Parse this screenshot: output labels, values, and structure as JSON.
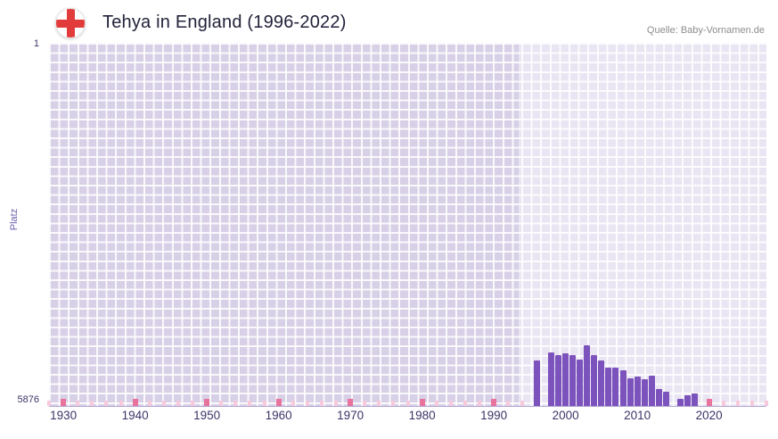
{
  "header": {
    "title": "Tehya in England (1996-2022)",
    "source": "Quelle: Baby-Vornamen.de",
    "flag_icon": "england-flag-icon"
  },
  "chart_data": {
    "type": "bar",
    "title": "Tehya in England (1996-2022)",
    "ylabel": "Platz",
    "xlabel": "",
    "y_axis": {
      "top_label": "1",
      "bottom_label": "5876",
      "min": 1,
      "max": 5876,
      "inverted": true
    },
    "x_axis": {
      "min": 1928,
      "max": 2028,
      "ticks": [
        1930,
        1940,
        1950,
        1960,
        1970,
        1980,
        1990,
        2000,
        2010,
        2020
      ]
    },
    "highlight_band": {
      "from": 1993.5,
      "to": 2028
    },
    "grid": true,
    "legend": "none",
    "series": [
      {
        "year": 1996,
        "rank": 5140
      },
      {
        "year": 1997,
        "rank": null
      },
      {
        "year": 1998,
        "rank": 5010
      },
      {
        "year": 1999,
        "rank": 5060
      },
      {
        "year": 2000,
        "rank": 5030
      },
      {
        "year": 2001,
        "rank": 5060
      },
      {
        "year": 2002,
        "rank": 5130
      },
      {
        "year": 2003,
        "rank": 4900
      },
      {
        "year": 2004,
        "rank": 5060
      },
      {
        "year": 2005,
        "rank": 5140
      },
      {
        "year": 2006,
        "rank": 5250
      },
      {
        "year": 2007,
        "rank": 5260
      },
      {
        "year": 2008,
        "rank": 5300
      },
      {
        "year": 2009,
        "rank": 5430
      },
      {
        "year": 2010,
        "rank": 5400
      },
      {
        "year": 2011,
        "rank": 5440
      },
      {
        "year": 2012,
        "rank": 5390
      },
      {
        "year": 2013,
        "rank": 5600
      },
      {
        "year": 2014,
        "rank": 5640
      },
      {
        "year": 2015,
        "rank": null
      },
      {
        "year": 2016,
        "rank": 5760
      },
      {
        "year": 2017,
        "rank": 5700
      },
      {
        "year": 2018,
        "rank": 5670
      },
      {
        "year": 2019,
        "rank": null
      },
      {
        "year": 2020,
        "rank": null
      },
      {
        "year": 2021,
        "rank": null
      },
      {
        "year": 2022,
        "rank": null
      }
    ],
    "colors": {
      "bar": "#7c52bd",
      "plot_background": "#d7d0e7",
      "highlight_band": "rgba(255,255,255,0.45)",
      "gridline": "#ffffff",
      "no_rank_marker": "#f6c9dc",
      "decade_marker": "#e8739c",
      "flag_cross": "#e23b3b"
    }
  }
}
